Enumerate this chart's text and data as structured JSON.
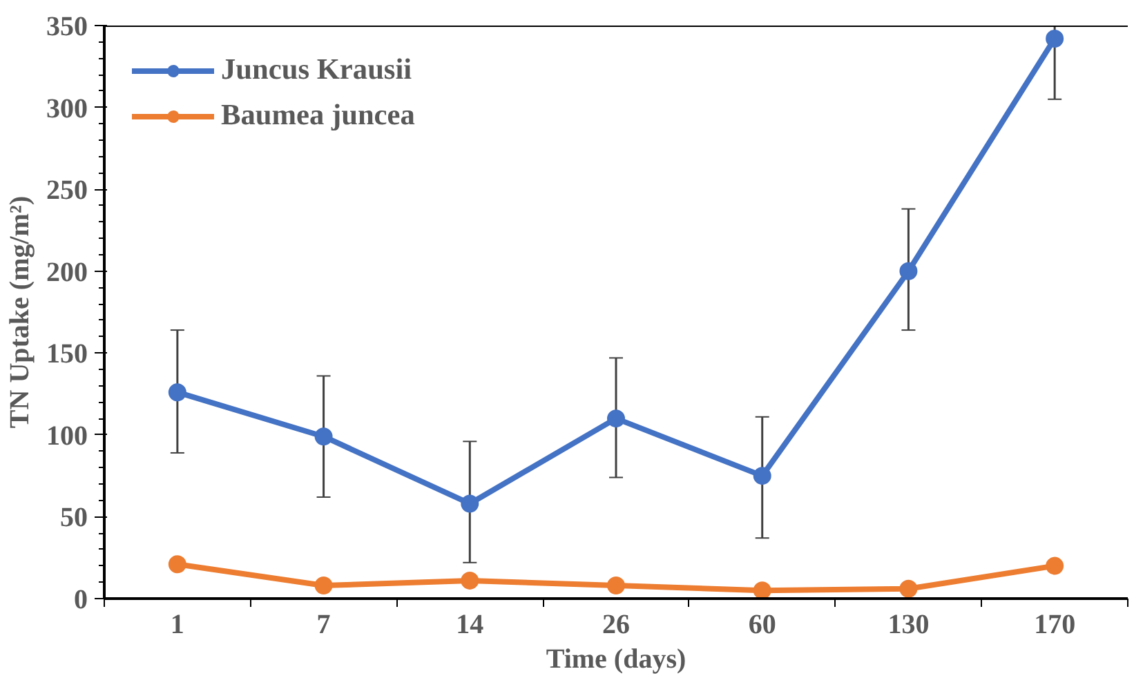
{
  "chart_data": {
    "type": "line",
    "xlabel": "Time (days)",
    "ylabel": "TN Uptake (mg/m²)",
    "categories": [
      "1",
      "7",
      "14",
      "26",
      "60",
      "130",
      "170"
    ],
    "series": [
      {
        "name": "Juncus Krausii",
        "color": "#4472c4",
        "values": [
          126,
          99,
          58,
          110,
          75,
          200,
          342
        ],
        "errors": [
          [
            89,
            164
          ],
          [
            62,
            136
          ],
          [
            22,
            96
          ],
          [
            74,
            147
          ],
          [
            37,
            111
          ],
          [
            164,
            238
          ],
          [
            305,
            350
          ]
        ]
      },
      {
        "name": "Baumea juncea",
        "color": "#ed7d31",
        "values": [
          21,
          8,
          11,
          8,
          5,
          6,
          20
        ]
      }
    ],
    "ylim": [
      0,
      350
    ],
    "yticks": [
      0,
      50,
      100,
      150,
      200,
      250,
      300,
      350
    ],
    "grid": false,
    "legend": "top left",
    "marker": "circle",
    "line_style": "solid"
  }
}
